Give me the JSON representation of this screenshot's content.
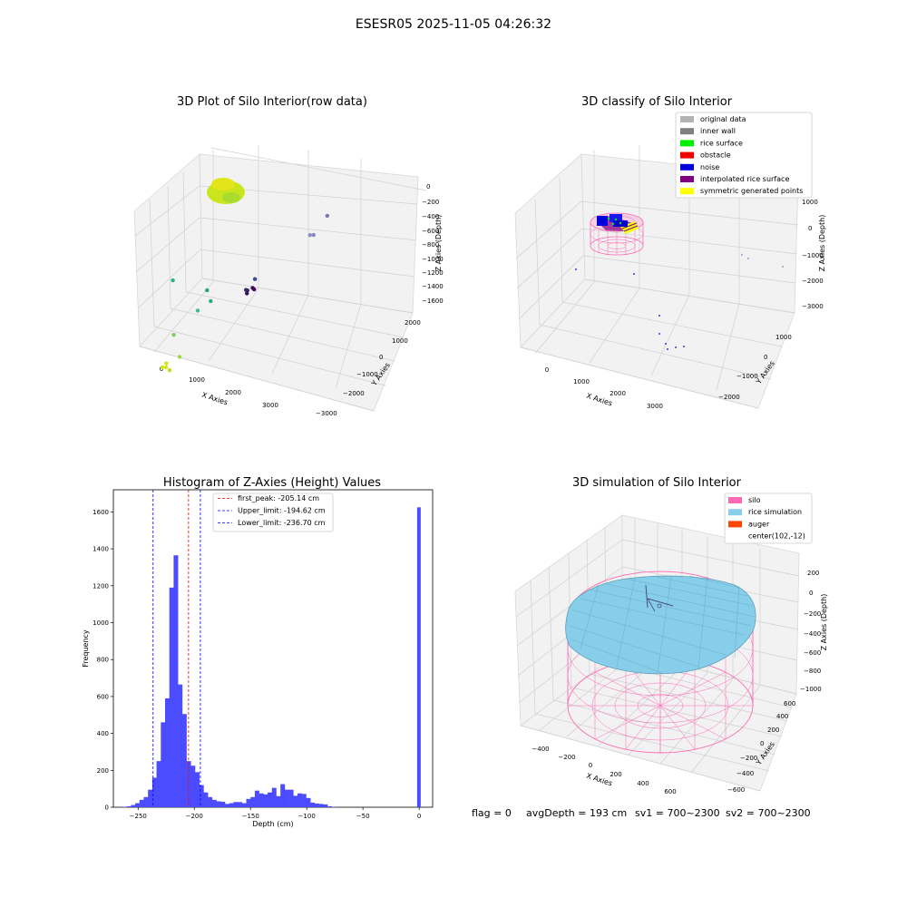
{
  "figure": {
    "suptitle": "ESESR05 2025-11-05 04:26:32",
    "footer": {
      "flag": "flag = 0",
      "avg": "avgDepth = 193 cm",
      "sv1": "sv1 = 700~2300",
      "sv2": "sv2 = 700~2300"
    }
  },
  "chart_data": [
    {
      "type": "scatter",
      "title": "3D Plot of Silo Interior(row data)",
      "xlabel": "X Axies",
      "ylabel": "Y Axies",
      "zlabel": "Z Axies (Depth)",
      "xticks": [
        "0",
        "1000",
        "2000",
        "3000"
      ],
      "yticks": [
        "−3000",
        "−2000",
        "−1000",
        "0",
        "1000",
        "2000"
      ],
      "zticks": [
        "0",
        "−200",
        "−400",
        "−600",
        "−800",
        "−1000",
        "−1200",
        "−1400",
        "−1600"
      ],
      "points": [
        {
          "x": 0,
          "y": 0,
          "z": -120,
          "color": "#c8e81a"
        },
        {
          "x": 100,
          "y": 0,
          "z": -130,
          "color": "#d4e414"
        },
        {
          "x": 200,
          "y": 0,
          "z": -110,
          "color": "#b8e024"
        },
        {
          "x": 50,
          "y": 100,
          "z": -140,
          "color": "#cde61c"
        },
        {
          "x": 300,
          "y": 300,
          "z": -180,
          "color": "#a0da3a"
        },
        {
          "x": 200,
          "y": 200,
          "z": -420,
          "color": "#7ecf5a"
        },
        {
          "x": 800,
          "y": 300,
          "z": -700,
          "color": "#3fbc8a"
        },
        {
          "x": 1100,
          "y": 400,
          "z": -800,
          "color": "#27a98a"
        },
        {
          "x": 0,
          "y": 500,
          "z": -880,
          "color": "#2fb08a"
        },
        {
          "x": 1000,
          "y": 400,
          "z": -900,
          "color": "#25a285"
        },
        {
          "x": 3200,
          "y": 1500,
          "z": -1400,
          "color": "#8d8fc4"
        },
        {
          "x": 3300,
          "y": 1500,
          "z": -1410,
          "color": "#8b87c0"
        },
        {
          "x": 3500,
          "y": 1800,
          "z": -1550,
          "color": "#7d77b8"
        },
        {
          "x": 2900,
          "y": -600,
          "z": -1450,
          "color": "#3a4b8c"
        },
        {
          "x": 3000,
          "y": -1200,
          "z": -1500,
          "color": "#362a6c"
        },
        {
          "x": 3100,
          "y": -1300,
          "z": -1530,
          "color": "#35256a"
        },
        {
          "x": 3200,
          "y": -1500,
          "z": -1560,
          "color": "#3b0f5e"
        },
        {
          "x": 3300,
          "y": -1400,
          "z": -1600,
          "color": "#3e0c5a"
        },
        {
          "x": 3400,
          "y": -1500,
          "z": -1620,
          "color": "#410856"
        }
      ]
    },
    {
      "type": "scatter",
      "title": "3D classify of Silo Interior",
      "xlabel": "X Axies",
      "ylabel": "Y Axies",
      "zlabel": "Z Axies (Depth)",
      "xticks": [
        "0",
        "1000",
        "2000",
        "3000"
      ],
      "yticks": [
        "−2000",
        "−1000",
        "0",
        "1000"
      ],
      "zticks": [
        "1000",
        "0",
        "−1000",
        "−2000",
        "−3000"
      ],
      "legend": {
        "location": "upper right",
        "entries": [
          {
            "label": "original data",
            "color": "#b3b3b3"
          },
          {
            "label": "inner wall",
            "color": "#808080"
          },
          {
            "label": "rice surface",
            "color": "#00ee00"
          },
          {
            "label": "obstacle",
            "color": "#ee0000"
          },
          {
            "label": "noise",
            "color": "#0000dd"
          },
          {
            "label": "interpolated rice surface",
            "color": "#800080"
          },
          {
            "label": "symmetric generated points",
            "color": "#ffff00"
          }
        ]
      }
    },
    {
      "type": "bar",
      "title": "Histogram of Z-Axies (Height) Values",
      "xlabel": "Depth (cm)",
      "ylabel": "Frequency",
      "xlim": [
        -272,
        12
      ],
      "ylim": [
        0,
        1720
      ],
      "xticks": [
        -250,
        -200,
        -150,
        -100,
        -50,
        0
      ],
      "xtick_labels": [
        "−250",
        "−200",
        "−150",
        "−100",
        "−50",
        "0"
      ],
      "yticks": [
        0,
        200,
        400,
        600,
        800,
        1000,
        1200,
        1400,
        1600
      ],
      "ytick_labels": [
        "0",
        "200",
        "400",
        "600",
        "800",
        "1000",
        "1200",
        "1400",
        "1600"
      ],
      "bar_color": "#4c4cff",
      "bin_start": -264,
      "bin_width": 3.8,
      "values": [
        2,
        5,
        12,
        22,
        40,
        55,
        95,
        160,
        250,
        460,
        590,
        1190,
        1365,
        665,
        505,
        250,
        225,
        190,
        120,
        80,
        55,
        40,
        32,
        30,
        18,
        22,
        28,
        28,
        22,
        45,
        55,
        90,
        75,
        70,
        80,
        105,
        60,
        125,
        95,
        95,
        62,
        75,
        72,
        50,
        25,
        20,
        18,
        15,
        5,
        2,
        0,
        0,
        0,
        0,
        0,
        0,
        0,
        0,
        0,
        0,
        0,
        0,
        0,
        0,
        0,
        0,
        0,
        0,
        0
      ],
      "spike": {
        "x": -1.8,
        "width": 3.2,
        "value": 1625
      },
      "reference_lines": [
        {
          "label": "first_peak: -205.14 cm",
          "value": -205.14,
          "color": "#ff0000"
        },
        {
          "label": "Upper_limit: -194.62 cm",
          "value": -194.62,
          "color": "#0000ff"
        },
        {
          "label": "Lower_limit: -236.70 cm",
          "value": -236.7,
          "color": "#0000ff"
        }
      ]
    },
    {
      "type": "scatter",
      "title": "3D simulation of Silo Interior",
      "xlabel": "X Axies",
      "ylabel": "Y Axies",
      "zlabel": "Z Axies (Depth)",
      "xticks": [
        "−400",
        "−200",
        "0",
        "200",
        "400",
        "600"
      ],
      "yticks": [
        "−600",
        "−400",
        "−200",
        "0",
        "200",
        "400",
        "600"
      ],
      "zticks": [
        "200",
        "0",
        "−200",
        "−400",
        "−600",
        "−800",
        "−1000"
      ],
      "legend": {
        "location": "upper right",
        "entries": [
          {
            "label": "silo",
            "color": "#ff69b4"
          },
          {
            "label": "rice simulation",
            "color": "#87ceeb"
          },
          {
            "label": "auger",
            "color": "#ff4500"
          },
          {
            "label": "center(102,-12)",
            "color": ""
          }
        ]
      }
    }
  ]
}
